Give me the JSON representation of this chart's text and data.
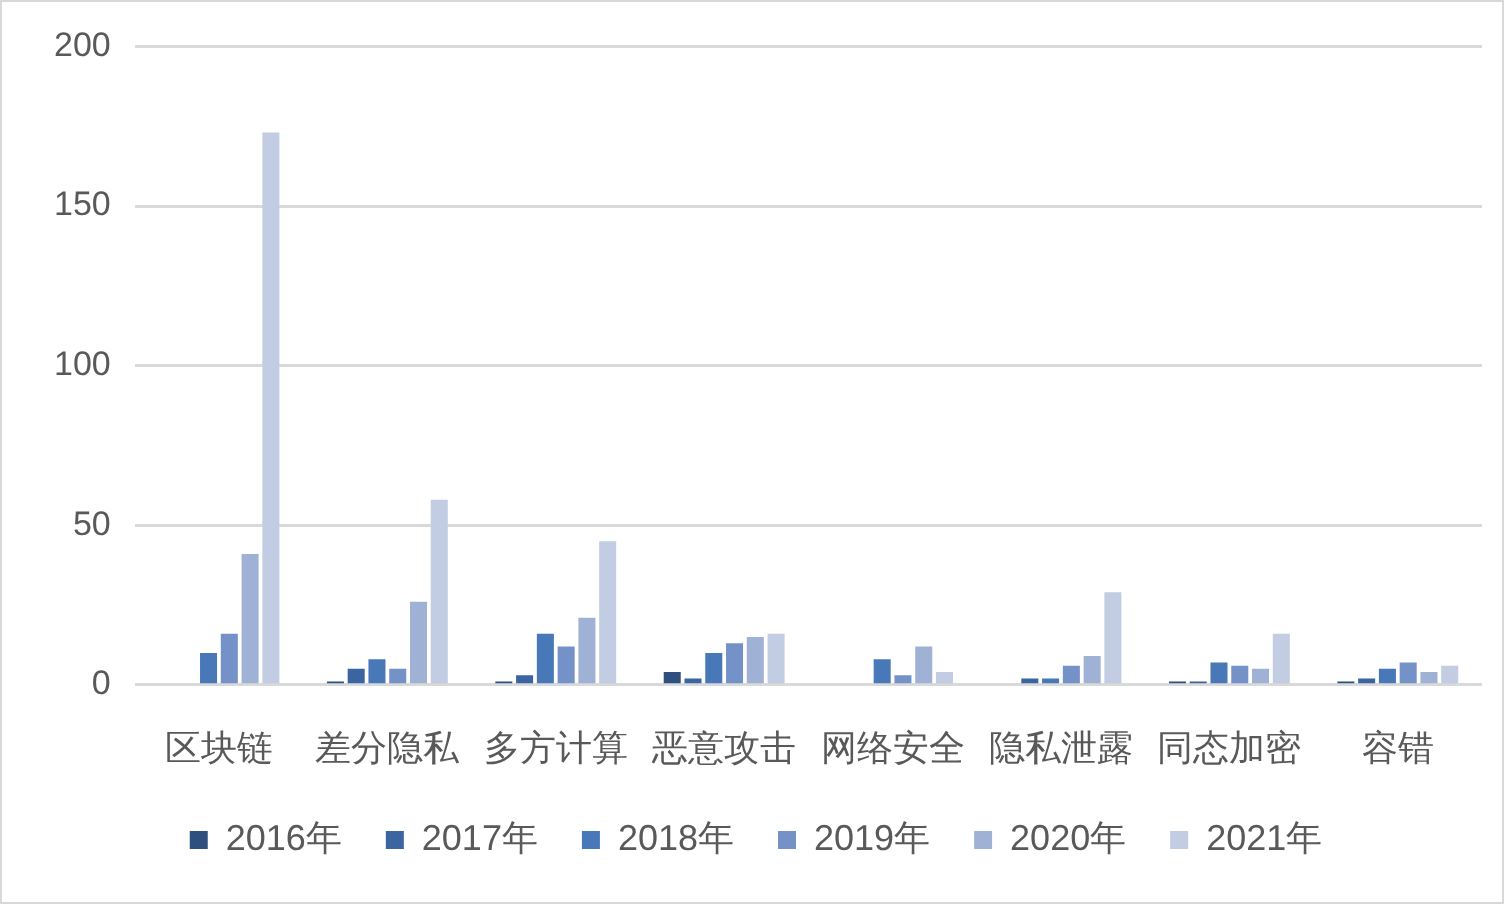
{
  "chart_data": {
    "type": "bar",
    "categories": [
      "区块链",
      "差分隐私",
      "多方计算",
      "恶意攻击",
      "网络安全",
      "隐私泄露",
      "同态加密",
      "容错"
    ],
    "series": [
      {
        "name": "2016年",
        "color": "#2f4f7f",
        "values": [
          0,
          1,
          1,
          4,
          0,
          0,
          1,
          1
        ]
      },
      {
        "name": "2017年",
        "color": "#3b65a0",
        "values": [
          0,
          5,
          3,
          2,
          0,
          2,
          1,
          2
        ]
      },
      {
        "name": "2018年",
        "color": "#4878b8",
        "values": [
          10,
          8,
          16,
          10,
          8,
          2,
          7,
          5
        ]
      },
      {
        "name": "2019年",
        "color": "#7592c8",
        "values": [
          16,
          5,
          12,
          13,
          3,
          6,
          6,
          7
        ]
      },
      {
        "name": "2020年",
        "color": "#9fb2d6",
        "values": [
          41,
          26,
          21,
          15,
          12,
          9,
          5,
          4
        ]
      },
      {
        "name": "2021年",
        "color": "#c2cce2",
        "values": [
          173,
          58,
          45,
          16,
          4,
          29,
          16,
          6
        ]
      }
    ],
    "ylim": [
      0,
      200
    ],
    "yticks": [
      0,
      50,
      100,
      150,
      200
    ],
    "grid": "y",
    "legend": "bottom"
  }
}
